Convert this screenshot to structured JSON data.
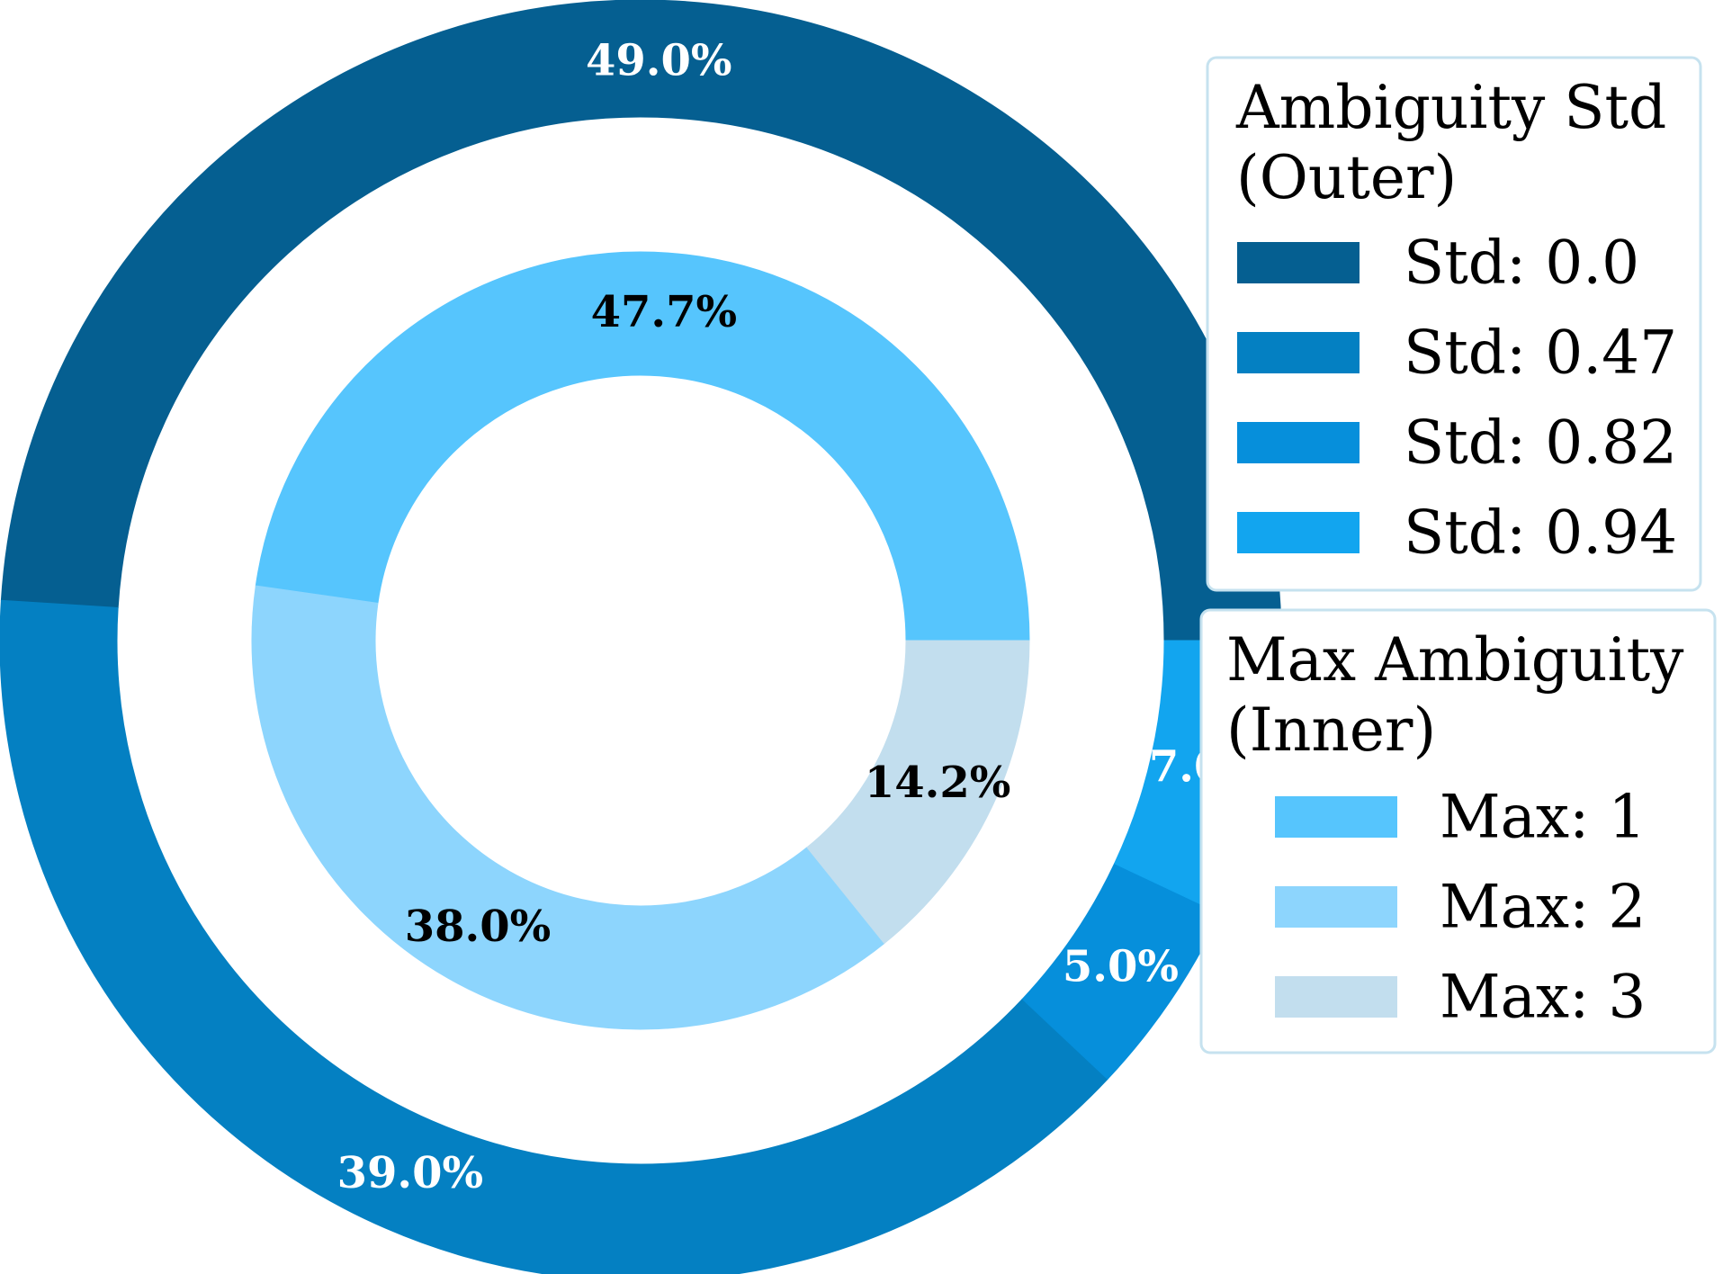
{
  "chart_data": {
    "type": "pie",
    "variant": "nested-donut",
    "title": "",
    "outer": {
      "legend_title": [
        "Ambiguity Std",
        "(Outer)"
      ],
      "slices": [
        {
          "label": "Std: 0.0",
          "value": 49.0,
          "pct_label": "49.0%",
          "color": "#055f91",
          "text_color": "#ffffff"
        },
        {
          "label": "Std: 0.47",
          "value": 39.0,
          "pct_label": "39.0%",
          "color": "#0480c2",
          "text_color": "#ffffff"
        },
        {
          "label": "Std: 0.82",
          "value": 5.0,
          "pct_label": "5.0%",
          "color": "#068fdb",
          "text_color": "#ffffff"
        },
        {
          "label": "Std: 0.94",
          "value": 7.0,
          "pct_label": "7.0%",
          "color": "#12a5ef",
          "text_color": "#ffffff"
        }
      ]
    },
    "inner": {
      "legend_title": [
        "Max Ambiguity",
        "(Inner)"
      ],
      "slices": [
        {
          "label": "Max: 1",
          "value": 47.7,
          "pct_label": "47.7%",
          "color": "#56c5fd",
          "text_color": "#000000"
        },
        {
          "label": "Max: 2",
          "value": 38.0,
          "pct_label": "38.0%",
          "color": "#8dd5fd",
          "text_color": "#000000"
        },
        {
          "label": "Max: 3",
          "value": 14.2,
          "pct_label": "14.2%",
          "color": "#c2deee",
          "text_color": "#000000"
        }
      ]
    },
    "start_angle_deg": 0,
    "direction": "counterclockwise",
    "legend_placement": "right"
  }
}
